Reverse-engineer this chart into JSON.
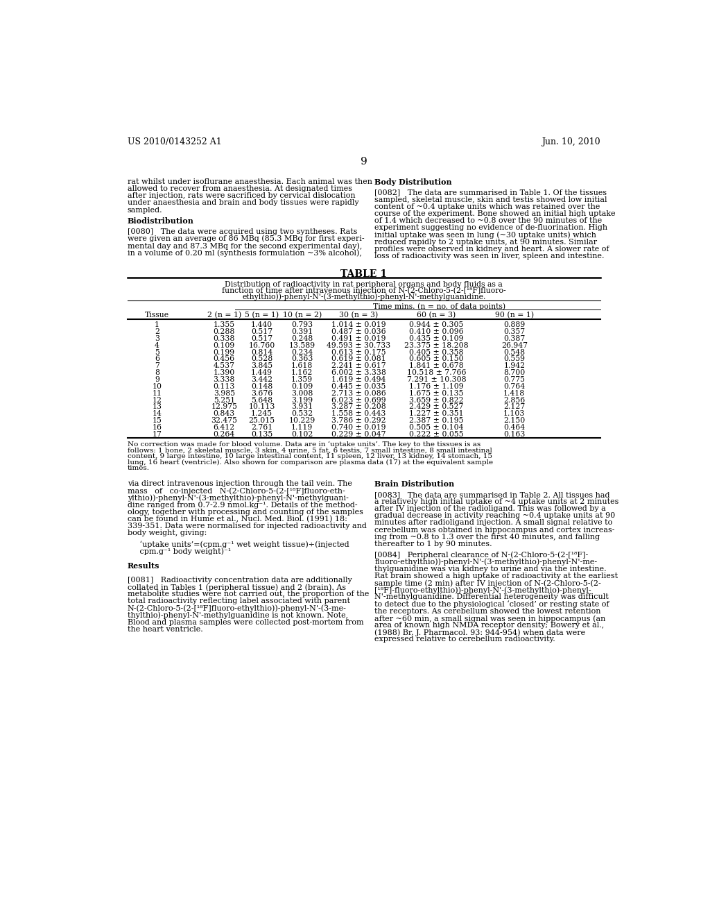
{
  "page_number": "9",
  "patent_left": "US 2010/0143252 A1",
  "patent_right": "Jun. 10, 2010",
  "background_color": "#ffffff",
  "col1_top": [
    "rat whilst under isoflurane anaesthesia. Each animal was then",
    "allowed to recover from anaesthesia. At designated times",
    "after injection, rats were sacrificed by cervical dislocation",
    "under anaesthesia and brain and body tissues were rapidly",
    "sampled.",
    "",
    "Biodistribution",
    "",
    "[0080]   The data were acquired using two syntheses. Rats",
    "were given an average of 86 MBq (85.3 MBq for first experi-",
    "mental day and 87.3 MBq for the second experimental day),",
    "in a volume of 0.20 ml (synthesis formulation ~3% alcohol),"
  ],
  "col2_top": [
    "Body Distribution",
    "",
    "[0082]   The data are summarised in Table 1. Of the tissues",
    "sampled, skeletal muscle, skin and testis showed low initial",
    "content of ~0.4 uptake units which was retained over the",
    "course of the experiment. Bone showed an initial high uptake",
    "of 1.4 which decreased to ~0.8 over the 90 minutes of the",
    "experiment suggesting no evidence of de-fluorination. High",
    "initial uptake was seen in lung (~30 uptake units) which",
    "reduced rapidly to 2 uptake units, at 90 minutes. Similar",
    "profiles were observed in kidney and heart. A slower rate of",
    "loss of radioactivity was seen in liver, spleen and intestine."
  ],
  "col1_bottom": [
    "via direct intravenous injection through the tail vein. The",
    "mass   of   co-injected   N-(2-Chloro-5-(2-[¹⁸F]fluoro-eth-",
    "ylthio))-phenyl-N'-(3-methylthio)-phenyl-N'-methylguani-",
    "dine ranged from 0.7-2.9 nmol.kg⁻¹. Details of the method-",
    "ology, together with processing and counting of the samples",
    "can be found in Hume et al., Nucl. Med. Biol. (1991) 18:",
    "339-351. Data were normalised for injected radioactivity and",
    "body weight, giving:",
    "",
    "     ‘uptake units’=(cpm.g⁻¹ wet weight tissue)÷(injected",
    "     cpm.g⁻¹ body weight)⁻¹",
    "",
    "",
    "Results",
    "",
    "",
    "[0081]   Radioactivity concentration data are additionally",
    "collated in Tables 1 (peripheral tissue) and 2 (brain). As",
    "metabolite studies were not carried out, the proportion of the",
    "total radioactivity reflecting label associated with parent",
    "N-(2-Chloro-5-(2-[¹⁸F]fluoro-ethylthio))-phenyl-N'-(3-me-",
    "thylthio)-phenyl-N'-methylguanidine is not known. Note,",
    "Blood and plasma samples were collected post-mortem from",
    "the heart ventricle."
  ],
  "col2_bottom": [
    "Brain Distribution",
    "",
    "[0083]   The data are summarised in Table 2. All tissues had",
    "a relatively high initial uptake of ~4 uptake units at 2 minutes",
    "after IV injection of the radioligand. This was followed by a",
    "gradual decrease in activity reaching ~0.4 uptake units at 90",
    "minutes after radioligand injection. A small signal relative to",
    "cerebellum was obtained in hippocampus and cortex increas-",
    "ing from ~0.8 to 1.3 over the first 40 minutes, and falling",
    "thereafter to 1 by 90 minutes.",
    "",
    "[0084]   Peripheral clearance of N-(2-Chloro-5-(2-[¹⁸F]-",
    "fluoro-ethylthio))-phenyl-N'-(3-methylthio)-phenyl-N'-me-",
    "thylguanidine was via kidney to urine and via the intestine.",
    "Rat brain showed a high uptake of radioactivity at the earliest",
    "sample time (2 min) after IV injection of N-(2-Chloro-5-(2-",
    "[¹⁸F]-fluoro-ethylthio))-phenyl-N'-(3-methylthio)-phenyl-",
    "N'-methylguanidine. Differential heterogeneity was difficult",
    "to detect due to the physiological ‘closed’ or resting state of",
    "the receptors. As cerebellum showed the lowest retention",
    "after ~60 min, a small signal was seen in hippocampus (an",
    "area of known high NMDA receptor density; Bowery et al.,",
    "(1988) Br. J. Pharmacol. 93: 944-954) when data were",
    "expressed relative to cerebellum radioactivity."
  ],
  "table_title": "TABLE 1",
  "table_subtitle_lines": [
    "Distribution of radioactivity in rat peripheral organs and body fluids as a",
    "function of time after intravenous injection of N-(2-Chloro-5-(2-[¹⁸F]fluoro-",
    "ethylthio))-phenyl-N'-(3-methylthio)-phenyl-N'-methylguanidine."
  ],
  "table_time_header": "Time mins. (n = no. of data points)",
  "table_col_headers": [
    "Tissue",
    "2 (n = 1)",
    "5 (n = 1)",
    "10 (n = 2)",
    "30 (n = 3)",
    "60 (n = 3)",
    "90 (n = 1)"
  ],
  "table_data": [
    [
      "1",
      "1.355",
      "1.440",
      "0.793",
      "1.014 ± 0.019",
      "0.944 ± 0.305",
      "0.889"
    ],
    [
      "2",
      "0.288",
      "0.517",
      "0.391",
      "0.487 ± 0.036",
      "0.410 ± 0.096",
      "0.357"
    ],
    [
      "3",
      "0.338",
      "0.517",
      "0.248",
      "0.491 ± 0.019",
      "0.435 ± 0.109",
      "0.387"
    ],
    [
      "4",
      "0.109",
      "16.760",
      "13.589",
      "49.593 ± 30.733",
      "23.375 ± 18.208",
      "26.947"
    ],
    [
      "5",
      "0.199",
      "0.814",
      "0.234",
      "0.613 ± 0.175",
      "0.405 ± 0.358",
      "0.548"
    ],
    [
      "6",
      "0.456",
      "0.528",
      "0.363",
      "0.619 ± 0.081",
      "0.605 ± 0.150",
      "0.559"
    ],
    [
      "7",
      "4.537",
      "3.845",
      "1.618",
      "2.241 ± 0.617",
      "1.841 ± 0.678",
      "1.942"
    ],
    [
      "8",
      "1.390",
      "1.449",
      "1.162",
      "6.002 ± 3.338",
      "10.518 ± 7.766",
      "8.700"
    ],
    [
      "9",
      "3.338",
      "3.442",
      "1.359",
      "1.619 ± 0.494",
      "7.291 ± 10.308",
      "0.775"
    ],
    [
      "10",
      "0.113",
      "0.148",
      "0.109",
      "0.445 ± 0.035",
      "1.176 ± 1.109",
      "0.764"
    ],
    [
      "11",
      "3.985",
      "3.676",
      "3.008",
      "2.713 ± 0.086",
      "1.675 ± 0.135",
      "1.418"
    ],
    [
      "12",
      "5.251",
      "5.648",
      "3.199",
      "6.023 ± 0.699",
      "3.659 ± 0.822",
      "2.856"
    ],
    [
      "13",
      "12.975",
      "10.113",
      "3.931",
      "3.287 ± 0.208",
      "2.429 ± 0.527",
      "2.127"
    ],
    [
      "14",
      "0.843",
      "1.245",
      "0.532",
      "1.558 ± 0.443",
      "1.227 ± 0.351",
      "1.103"
    ],
    [
      "15",
      "32.475",
      "25.015",
      "10.229",
      "3.786 ± 0.292",
      "2.387 ± 0.195",
      "2.150"
    ],
    [
      "16",
      "6.412",
      "2.761",
      "1.119",
      "0.740 ± 0.019",
      "0.505 ± 0.104",
      "0.464"
    ],
    [
      "17",
      "0.264",
      "0.135",
      "0.102",
      "0.229 ± 0.047",
      "0.222 ± 0.055",
      "0.163"
    ]
  ],
  "table_footnote_lines": [
    "No correction was made for blood volume. Data are in ‘uptake units’. The key to the tissues is as",
    "follows: 1 bone, 2 skeletal muscle, 3 skin, 4 urine, 5 fat, 6 testis, 7 small intestine, 8 small intestinal",
    "content, 9 large intestine, 10 large intestinal content, 11 spleen, 12 liver, 13 kidney, 14 stomach, 15",
    "lung, 16 heart (ventricle). Also shown for comparison are plasma data (17) at the equivalent sample",
    "times."
  ]
}
